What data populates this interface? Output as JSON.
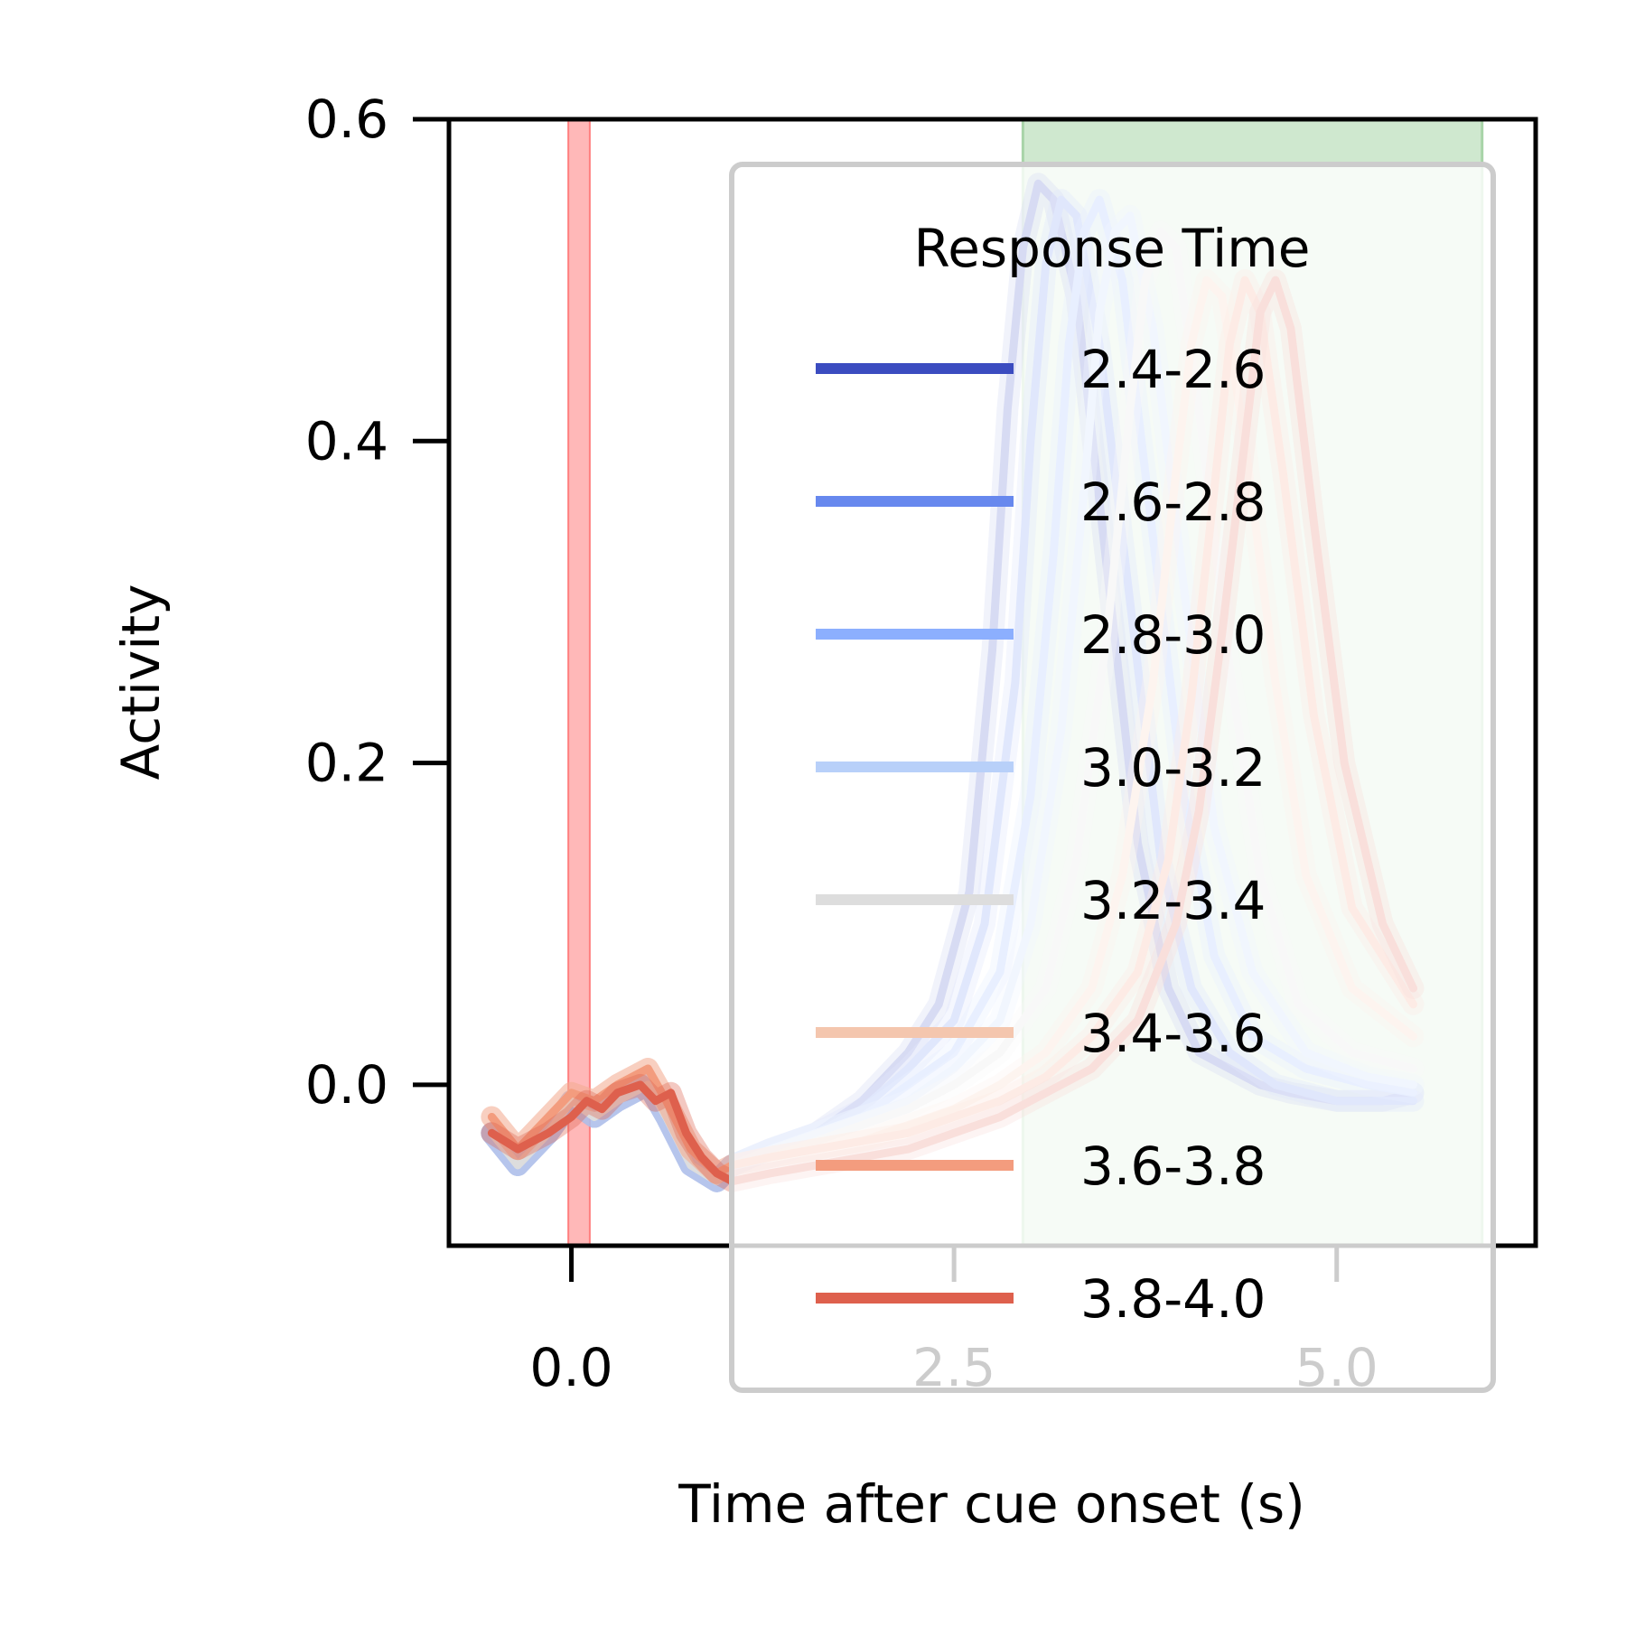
{
  "chart_data": {
    "type": "line",
    "title": "",
    "xlabel": "Time after cue onset (s)",
    "ylabel": "Activity",
    "xlim": [
      -0.8,
      6.3
    ],
    "ylim": [
      -0.1,
      0.6
    ],
    "xticks": [
      0.0,
      2.5,
      5.0
    ],
    "yticks": [
      0.0,
      0.2,
      0.4,
      0.6
    ],
    "xtick_labels": [
      "0.0",
      "2.5",
      "5.0"
    ],
    "ytick_labels": [
      "0.0",
      "0.2",
      "0.4",
      "0.6"
    ],
    "grid": false,
    "legend": {
      "title": "Response Time",
      "placement": "upper-right"
    },
    "cue_band": {
      "x0": -0.02,
      "x1": 0.12,
      "color": "#ff9a9a"
    },
    "response_window": {
      "x0": 2.95,
      "x1": 5.95,
      "color": "#cfe8cf"
    },
    "series": [
      {
        "name": "2.4-2.6",
        "color": "#3b4cc0",
        "values": [
          [
            -0.52,
            -0.03
          ],
          [
            -0.35,
            -0.05
          ],
          [
            -0.15,
            -0.03
          ],
          [
            0.0,
            -0.01
          ],
          [
            0.15,
            -0.02
          ],
          [
            0.3,
            -0.01
          ],
          [
            0.5,
            0.0
          ],
          [
            0.62,
            -0.02
          ],
          [
            0.78,
            -0.05
          ],
          [
            0.95,
            -0.06
          ],
          [
            1.05,
            -0.05
          ],
          [
            1.3,
            -0.04
          ],
          [
            1.6,
            -0.03
          ],
          [
            1.9,
            -0.01
          ],
          [
            2.2,
            0.02
          ],
          [
            2.4,
            0.05
          ],
          [
            2.6,
            0.12
          ],
          [
            2.75,
            0.27
          ],
          [
            2.85,
            0.42
          ],
          [
            2.95,
            0.52
          ],
          [
            3.05,
            0.56
          ],
          [
            3.15,
            0.55
          ],
          [
            3.3,
            0.49
          ],
          [
            3.5,
            0.32
          ],
          [
            3.7,
            0.15
          ],
          [
            3.9,
            0.06
          ],
          [
            4.1,
            0.02
          ],
          [
            4.3,
            0.01
          ],
          [
            4.5,
            0.0
          ],
          [
            4.7,
            -0.005
          ],
          [
            5.0,
            -0.01
          ],
          [
            5.3,
            -0.01
          ],
          [
            5.5,
            -0.005
          ]
        ]
      },
      {
        "name": "2.6-2.8",
        "color": "#6788ee",
        "values": [
          [
            -0.52,
            -0.03
          ],
          [
            -0.35,
            -0.05
          ],
          [
            -0.15,
            -0.03
          ],
          [
            0.0,
            -0.01
          ],
          [
            0.15,
            -0.02
          ],
          [
            0.3,
            -0.01
          ],
          [
            0.5,
            0.0
          ],
          [
            0.62,
            -0.02
          ],
          [
            0.78,
            -0.05
          ],
          [
            0.95,
            -0.06
          ],
          [
            1.05,
            -0.05
          ],
          [
            1.3,
            -0.04
          ],
          [
            1.6,
            -0.03
          ],
          [
            1.9,
            -0.015
          ],
          [
            2.2,
            0.01
          ],
          [
            2.5,
            0.04
          ],
          [
            2.7,
            0.1
          ],
          [
            2.9,
            0.25
          ],
          [
            3.0,
            0.4
          ],
          [
            3.1,
            0.51
          ],
          [
            3.2,
            0.55
          ],
          [
            3.3,
            0.54
          ],
          [
            3.45,
            0.46
          ],
          [
            3.65,
            0.3
          ],
          [
            3.85,
            0.14
          ],
          [
            4.05,
            0.06
          ],
          [
            4.3,
            0.02
          ],
          [
            4.6,
            0.0
          ],
          [
            5.0,
            -0.01
          ],
          [
            5.5,
            -0.01
          ]
        ]
      },
      {
        "name": "2.8-3.0",
        "color": "#8caffe",
        "values": [
          [
            -0.52,
            -0.03
          ],
          [
            -0.35,
            -0.05
          ],
          [
            -0.15,
            -0.03
          ],
          [
            0.0,
            -0.01
          ],
          [
            0.15,
            -0.02
          ],
          [
            0.3,
            -0.01
          ],
          [
            0.5,
            0.0
          ],
          [
            0.62,
            -0.02
          ],
          [
            0.78,
            -0.05
          ],
          [
            0.95,
            -0.06
          ],
          [
            1.05,
            -0.05
          ],
          [
            1.3,
            -0.04
          ],
          [
            1.6,
            -0.03
          ],
          [
            1.9,
            -0.02
          ],
          [
            2.2,
            0.0
          ],
          [
            2.5,
            0.02
          ],
          [
            2.8,
            0.07
          ],
          [
            3.0,
            0.18
          ],
          [
            3.15,
            0.33
          ],
          [
            3.25,
            0.46
          ],
          [
            3.35,
            0.53
          ],
          [
            3.45,
            0.55
          ],
          [
            3.6,
            0.5
          ],
          [
            3.8,
            0.34
          ],
          [
            4.0,
            0.18
          ],
          [
            4.2,
            0.08
          ],
          [
            4.45,
            0.03
          ],
          [
            4.8,
            0.01
          ],
          [
            5.2,
            0.0
          ],
          [
            5.5,
            -0.005
          ]
        ]
      },
      {
        "name": "3.0-3.2",
        "color": "#b8d0f9",
        "values": [
          [
            -0.52,
            -0.03
          ],
          [
            -0.35,
            -0.05
          ],
          [
            -0.15,
            -0.03
          ],
          [
            0.0,
            -0.01
          ],
          [
            0.15,
            -0.02
          ],
          [
            0.3,
            -0.01
          ],
          [
            0.5,
            0.0
          ],
          [
            0.62,
            -0.02
          ],
          [
            0.78,
            -0.05
          ],
          [
            0.95,
            -0.06
          ],
          [
            1.05,
            -0.05
          ],
          [
            1.3,
            -0.04
          ],
          [
            1.6,
            -0.03
          ],
          [
            1.9,
            -0.02
          ],
          [
            2.2,
            -0.01
          ],
          [
            2.5,
            0.01
          ],
          [
            2.8,
            0.04
          ],
          [
            3.0,
            0.1
          ],
          [
            3.2,
            0.22
          ],
          [
            3.35,
            0.37
          ],
          [
            3.45,
            0.48
          ],
          [
            3.55,
            0.53
          ],
          [
            3.65,
            0.54
          ],
          [
            3.8,
            0.47
          ],
          [
            4.0,
            0.31
          ],
          [
            4.2,
            0.16
          ],
          [
            4.45,
            0.07
          ],
          [
            4.8,
            0.02
          ],
          [
            5.2,
            0.005
          ],
          [
            5.5,
            0.0
          ]
        ]
      },
      {
        "name": "3.2-3.4",
        "color": "#dddddd",
        "values": [
          [
            -0.52,
            -0.03
          ],
          [
            -0.35,
            -0.05
          ],
          [
            -0.15,
            -0.03
          ],
          [
            0.0,
            -0.01
          ],
          [
            0.15,
            -0.02
          ],
          [
            0.3,
            -0.01
          ],
          [
            0.5,
            0.0
          ],
          [
            0.62,
            -0.02
          ],
          [
            0.78,
            -0.05
          ],
          [
            0.95,
            -0.06
          ],
          [
            1.05,
            -0.05
          ],
          [
            1.3,
            -0.045
          ],
          [
            1.6,
            -0.035
          ],
          [
            1.9,
            -0.025
          ],
          [
            2.2,
            -0.015
          ],
          [
            2.5,
            0.0
          ],
          [
            2.8,
            0.02
          ],
          [
            3.1,
            0.06
          ],
          [
            3.3,
            0.14
          ],
          [
            3.5,
            0.28
          ],
          [
            3.65,
            0.42
          ],
          [
            3.75,
            0.5
          ],
          [
            3.85,
            0.53
          ],
          [
            3.95,
            0.52
          ],
          [
            4.1,
            0.42
          ],
          [
            4.3,
            0.26
          ],
          [
            4.5,
            0.13
          ],
          [
            4.75,
            0.05
          ],
          [
            5.1,
            0.02
          ],
          [
            5.5,
            0.01
          ]
        ]
      },
      {
        "name": "3.4-3.6",
        "color": "#f4c6ae",
        "values": [
          [
            -0.52,
            -0.02
          ],
          [
            -0.35,
            -0.04
          ],
          [
            -0.15,
            -0.02
          ],
          [
            0.0,
            -0.005
          ],
          [
            0.15,
            -0.01
          ],
          [
            0.3,
            0.0
          ],
          [
            0.5,
            0.01
          ],
          [
            0.62,
            -0.01
          ],
          [
            0.78,
            -0.04
          ],
          [
            0.95,
            -0.055
          ],
          [
            1.05,
            -0.05
          ],
          [
            1.3,
            -0.045
          ],
          [
            1.6,
            -0.04
          ],
          [
            1.9,
            -0.035
          ],
          [
            2.2,
            -0.025
          ],
          [
            2.5,
            -0.015
          ],
          [
            2.8,
            0.0
          ],
          [
            3.1,
            0.02
          ],
          [
            3.4,
            0.06
          ],
          [
            3.6,
            0.13
          ],
          [
            3.8,
            0.25
          ],
          [
            3.95,
            0.38
          ],
          [
            4.05,
            0.46
          ],
          [
            4.15,
            0.5
          ],
          [
            4.25,
            0.49
          ],
          [
            4.4,
            0.4
          ],
          [
            4.6,
            0.25
          ],
          [
            4.8,
            0.13
          ],
          [
            5.1,
            0.06
          ],
          [
            5.5,
            0.03
          ]
        ]
      },
      {
        "name": "3.6-3.8",
        "color": "#f39c7e",
        "values": [
          [
            -0.52,
            -0.02
          ],
          [
            -0.35,
            -0.04
          ],
          [
            -0.15,
            -0.02
          ],
          [
            0.0,
            -0.005
          ],
          [
            0.15,
            -0.01
          ],
          [
            0.3,
            0.0
          ],
          [
            0.5,
            0.01
          ],
          [
            0.62,
            -0.01
          ],
          [
            0.78,
            -0.04
          ],
          [
            0.95,
            -0.055
          ],
          [
            1.05,
            -0.05
          ],
          [
            1.3,
            -0.045
          ],
          [
            1.6,
            -0.04
          ],
          [
            1.9,
            -0.035
          ],
          [
            2.2,
            -0.03
          ],
          [
            2.5,
            -0.02
          ],
          [
            2.8,
            -0.01
          ],
          [
            3.1,
            0.005
          ],
          [
            3.4,
            0.03
          ],
          [
            3.7,
            0.07
          ],
          [
            3.9,
            0.14
          ],
          [
            4.05,
            0.24
          ],
          [
            4.2,
            0.37
          ],
          [
            4.3,
            0.46
          ],
          [
            4.4,
            0.5
          ],
          [
            4.5,
            0.48
          ],
          [
            4.65,
            0.38
          ],
          [
            4.85,
            0.23
          ],
          [
            5.1,
            0.11
          ],
          [
            5.5,
            0.05
          ]
        ]
      },
      {
        "name": "3.8-4.0",
        "color": "#de604d",
        "values": [
          [
            -0.52,
            -0.03
          ],
          [
            -0.35,
            -0.04
          ],
          [
            -0.15,
            -0.03
          ],
          [
            0.0,
            -0.02
          ],
          [
            0.1,
            -0.01
          ],
          [
            0.2,
            -0.015
          ],
          [
            0.3,
            -0.005
          ],
          [
            0.45,
            0.0
          ],
          [
            0.55,
            -0.01
          ],
          [
            0.65,
            -0.005
          ],
          [
            0.75,
            -0.03
          ],
          [
            0.85,
            -0.045
          ],
          [
            0.95,
            -0.055
          ],
          [
            1.05,
            -0.06
          ],
          [
            1.3,
            -0.055
          ],
          [
            1.6,
            -0.05
          ],
          [
            1.9,
            -0.045
          ],
          [
            2.2,
            -0.04
          ],
          [
            2.5,
            -0.03
          ],
          [
            2.8,
            -0.02
          ],
          [
            3.1,
            -0.005
          ],
          [
            3.4,
            0.01
          ],
          [
            3.7,
            0.04
          ],
          [
            3.95,
            0.1
          ],
          [
            4.1,
            0.17
          ],
          [
            4.25,
            0.28
          ],
          [
            4.4,
            0.4
          ],
          [
            4.5,
            0.48
          ],
          [
            4.6,
            0.5
          ],
          [
            4.7,
            0.47
          ],
          [
            4.85,
            0.35
          ],
          [
            5.05,
            0.2
          ],
          [
            5.3,
            0.1
          ],
          [
            5.5,
            0.06
          ]
        ]
      }
    ]
  }
}
